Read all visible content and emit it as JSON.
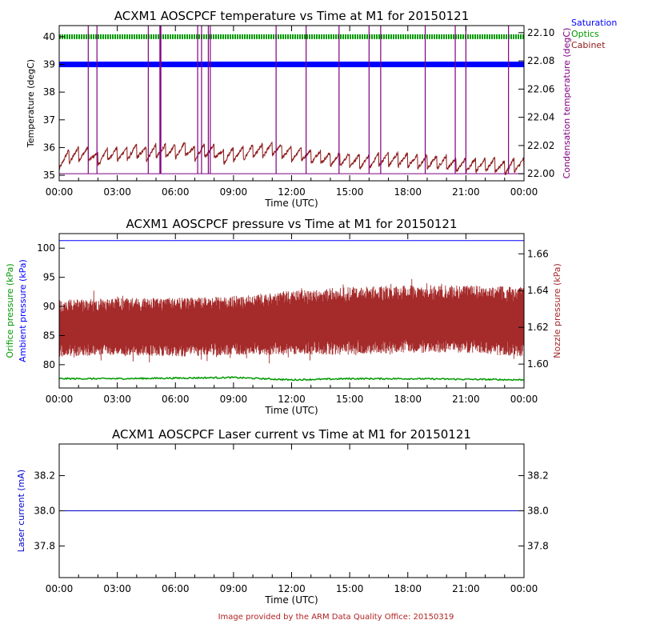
{
  "footer": "Image provided by the ARM Data Quality Office: 20150319",
  "colors": {
    "saturation": "#0000ff",
    "optics": "#009900",
    "cabinet": "#8b1a1a",
    "condensation": "#800080",
    "orifice": "#009900",
    "ambient": "#0000ff",
    "nozzle": "#a52a2a",
    "laser": "#0000cc",
    "axis": "#000000"
  },
  "chart_data": [
    {
      "type": "line",
      "title": "ACXM1 AOSCPCF temperature vs Time at M1 for 20150121",
      "xlabel": "Time (UTC)",
      "ylabel": "Temperature (degC)",
      "ylabel_right": "Condensation temperature (degC)",
      "xticks": [
        "00:00",
        "03:00",
        "06:00",
        "09:00",
        "12:00",
        "15:00",
        "18:00",
        "21:00",
        "00:00"
      ],
      "xlim_hours": [
        0,
        24
      ],
      "ylim": [
        34.8,
        40.4
      ],
      "yticks": [
        "35",
        "36",
        "37",
        "38",
        "39",
        "40"
      ],
      "ylim_right": [
        21.995,
        22.105
      ],
      "yticks_right": [
        "22.00",
        "22.02",
        "22.04",
        "22.06",
        "22.08",
        "22.10"
      ],
      "legend_position": "top-right outside",
      "legend": [
        "Saturation",
        "Optics",
        "Cabinet"
      ],
      "series": [
        {
          "name": "Saturation",
          "color_key": "saturation",
          "constant": 39.0
        },
        {
          "name": "Optics",
          "color_key": "optics",
          "constant": 40.0
        },
        {
          "name": "Cabinet",
          "color_key": "cabinet",
          "x_hours": [
            0.0,
            0.5,
            1.0,
            1.5,
            2.0,
            2.5,
            3.0,
            3.5,
            4.0,
            4.5,
            5.0,
            5.5,
            6.0,
            6.5,
            7.0,
            7.5,
            8.0,
            8.5,
            9.0,
            9.5,
            10.0,
            10.5,
            11.0,
            11.5,
            12.0,
            12.5,
            13.0,
            13.5,
            14.0,
            14.5,
            15.0,
            15.5,
            16.0,
            16.5,
            17.0,
            17.5,
            18.0,
            18.5,
            19.0,
            19.5,
            20.0,
            20.5,
            21.0,
            21.5,
            22.0,
            22.5,
            23.0,
            23.5,
            24.0
          ],
          "values": [
            35.5,
            35.7,
            35.8,
            35.8,
            35.6,
            35.8,
            35.8,
            35.8,
            35.9,
            35.8,
            35.9,
            35.9,
            35.9,
            36.0,
            35.8,
            35.9,
            35.9,
            35.7,
            35.8,
            35.8,
            35.9,
            35.9,
            36.0,
            35.9,
            35.8,
            35.8,
            35.7,
            35.7,
            35.6,
            35.6,
            35.6,
            35.5,
            35.5,
            35.6,
            35.6,
            35.6,
            35.6,
            35.5,
            35.5,
            35.5,
            35.5,
            35.4,
            35.4,
            35.4,
            35.4,
            35.4,
            35.3,
            35.4,
            35.4
          ]
        },
        {
          "name": "Condensation",
          "color_key": "condensation",
          "axis": "right",
          "baseline": 22.0,
          "spike_hours": [
            1.5,
            1.95,
            4.6,
            5.2,
            5.25,
            7.15,
            7.35,
            7.7,
            7.8,
            11.2,
            12.75,
            14.45,
            16.0,
            16.6,
            18.9,
            20.45,
            21.0,
            23.2
          ]
        }
      ]
    },
    {
      "type": "line",
      "title": "ACXM1 AOSCPCF pressure vs Time at M1 for 20150121",
      "xlabel": "Time (UTC)",
      "ylabel": "Ambient pressure (kPa)",
      "ylabel_outer": "Orifice pressure (kPa)",
      "ylabel_right": "Nozzle pressure (kPa)",
      "xticks": [
        "00:00",
        "03:00",
        "06:00",
        "09:00",
        "12:00",
        "15:00",
        "18:00",
        "21:00",
        "00:00"
      ],
      "xlim_hours": [
        0,
        24
      ],
      "ylim": [
        76,
        102.5
      ],
      "yticks": [
        "80",
        "85",
        "90",
        "95",
        "100"
      ],
      "ylim_right": [
        1.587,
        1.671
      ],
      "yticks_right": [
        "1.60",
        "1.62",
        "1.64",
        "1.66"
      ],
      "series": [
        {
          "name": "Ambient pressure",
          "color_key": "ambient",
          "constant": 101.3
        },
        {
          "name": "Orifice pressure",
          "color_key": "orifice",
          "x_hours": [
            0,
            3,
            6,
            9,
            12,
            15,
            18,
            21,
            24
          ],
          "values": [
            77.6,
            77.6,
            77.7,
            77.8,
            77.4,
            77.6,
            77.6,
            77.5,
            77.4
          ]
        },
        {
          "name": "Nozzle pressure",
          "color_key": "nozzle",
          "axis": "right",
          "x_hours": [
            0,
            3,
            6,
            9,
            12,
            15,
            18,
            21,
            24
          ],
          "center": [
            1.62,
            1.619,
            1.62,
            1.621,
            1.622,
            1.623,
            1.624,
            1.624,
            1.623
          ],
          "band_low": [
            1.604,
            1.605,
            1.604,
            1.605,
            1.605,
            1.605,
            1.606,
            1.606,
            1.604
          ],
          "band_high": [
            1.635,
            1.636,
            1.636,
            1.637,
            1.64,
            1.642,
            1.643,
            1.643,
            1.642
          ]
        }
      ]
    },
    {
      "type": "line",
      "title": "ACXM1 AOSCPCF Laser current vs Time at M1 for 20150121",
      "xlabel": "Time (UTC)",
      "ylabel": "Laser current (mA)",
      "xticks": [
        "00:00",
        "03:00",
        "06:00",
        "09:00",
        "12:00",
        "15:00",
        "18:00",
        "21:00",
        "00:00"
      ],
      "xlim_hours": [
        0,
        24
      ],
      "ylim": [
        37.62,
        38.38
      ],
      "yticks": [
        "37.8",
        "38.0",
        "38.2"
      ],
      "yticks_right": [
        "37.8",
        "38.0",
        "38.2"
      ],
      "series": [
        {
          "name": "Laser current",
          "color_key": "laser",
          "constant": 38.0
        }
      ]
    }
  ]
}
